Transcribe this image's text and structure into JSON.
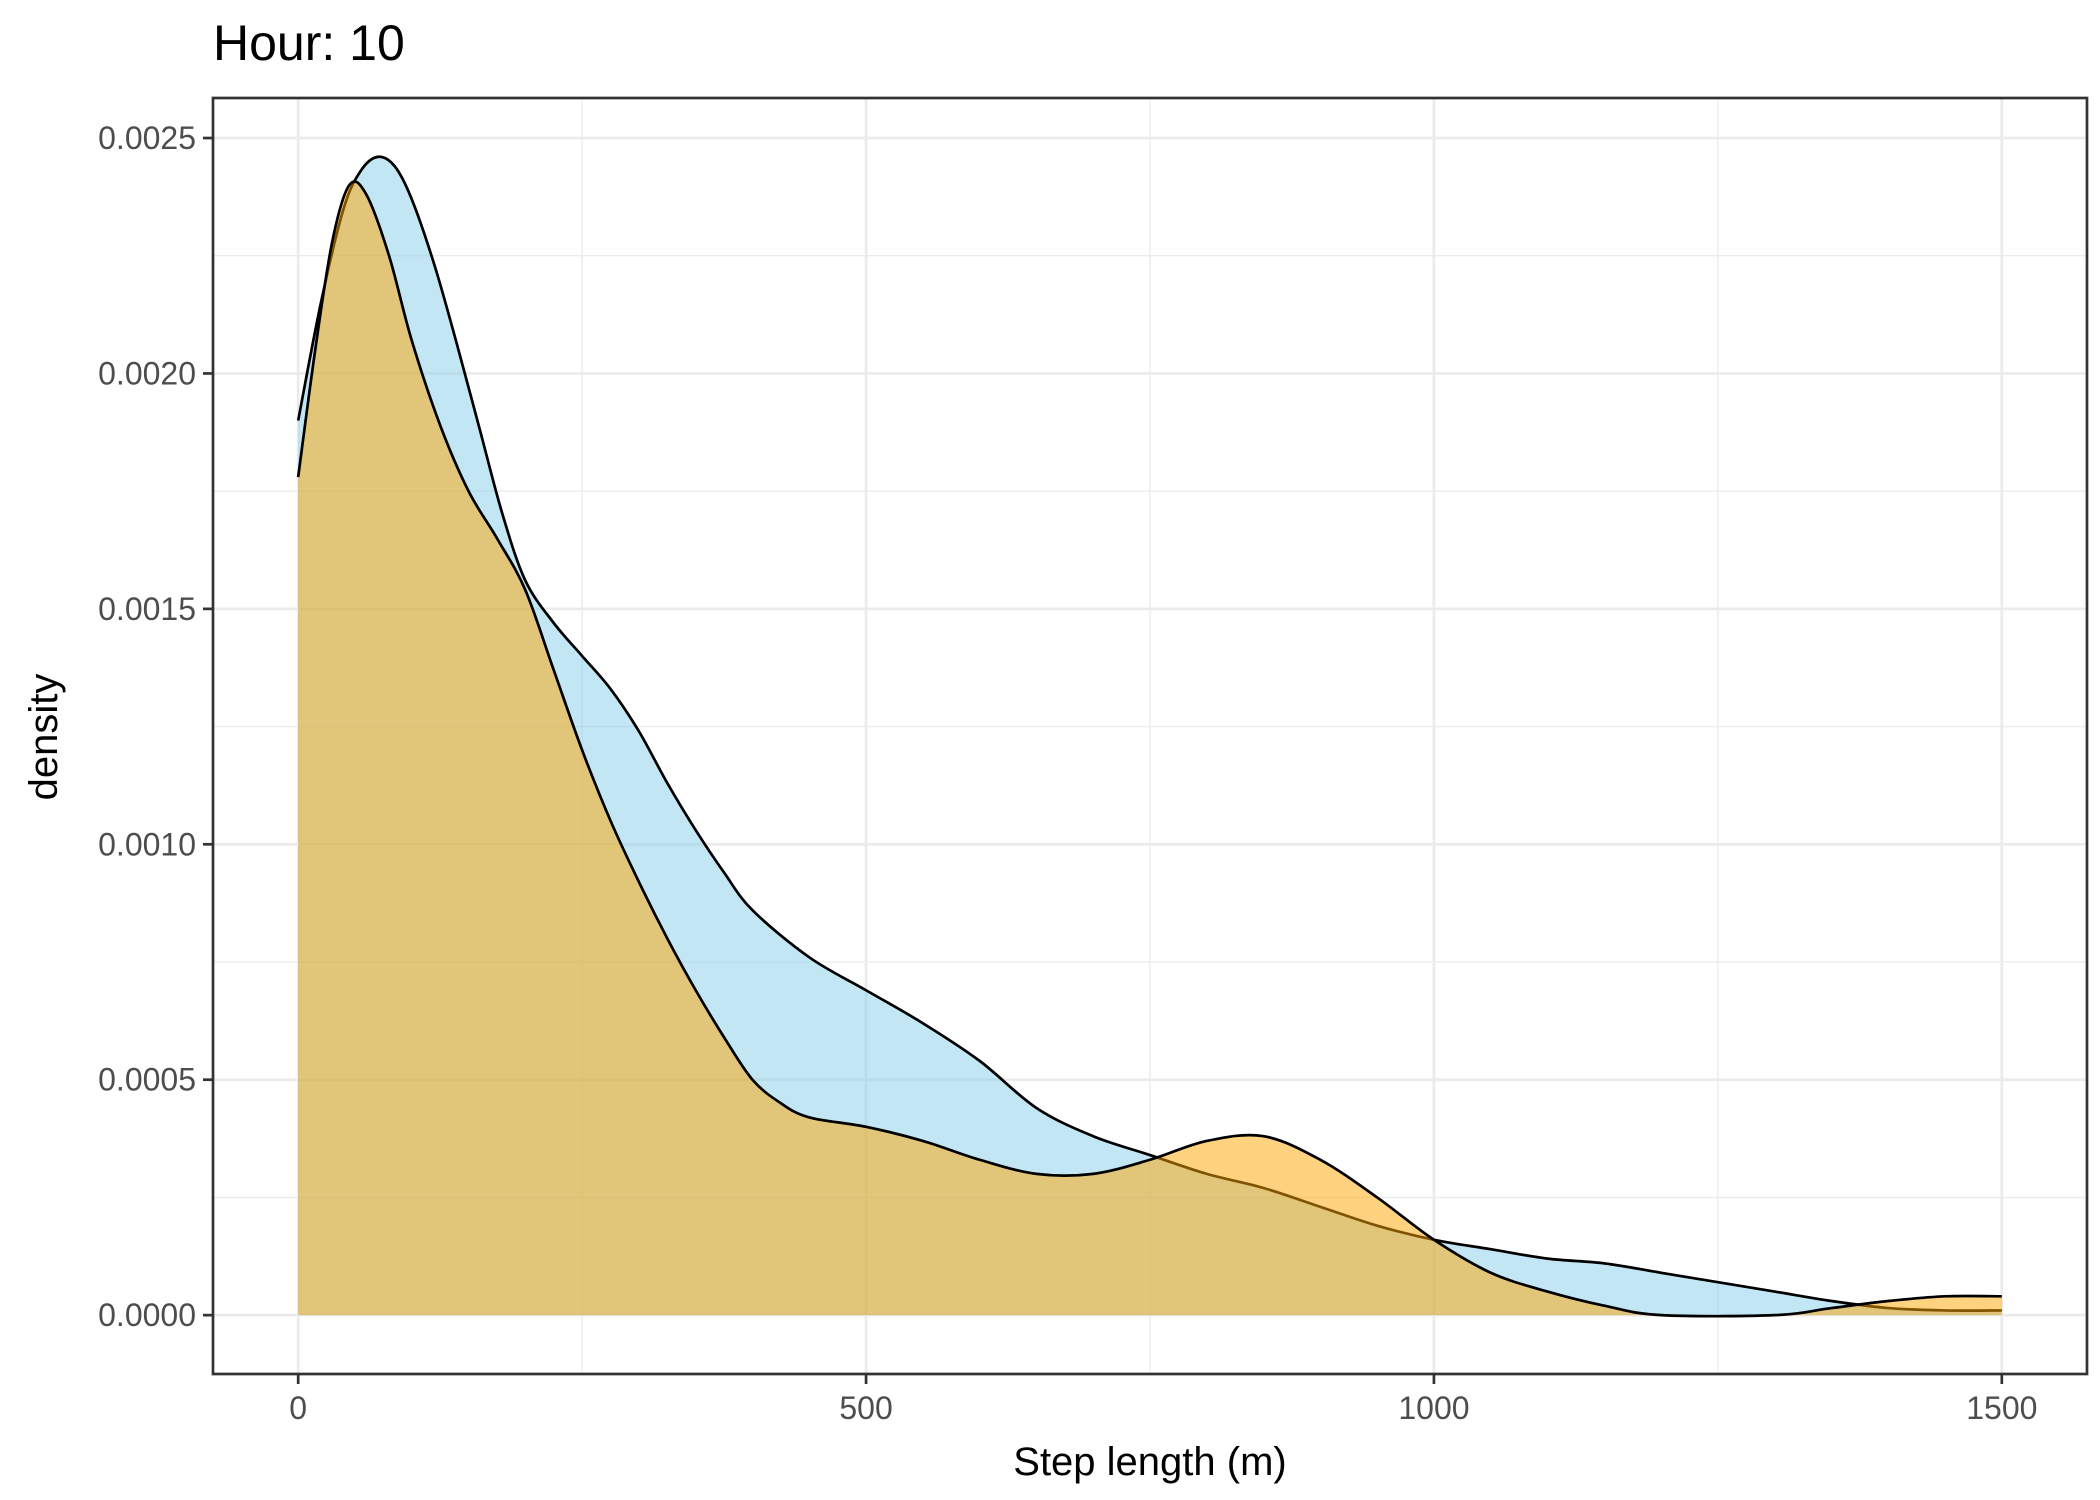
{
  "chart_data": {
    "type": "area",
    "title": "Hour: 10",
    "xlabel": "Step length (m)",
    "ylabel": "density",
    "xlim": [
      -75,
      1575
    ],
    "ylim": [
      -0.000125,
      0.002585
    ],
    "x_ticks": [
      0,
      500,
      1000,
      1500
    ],
    "x_tick_labels": [
      "0",
      "500",
      "1000",
      "1500"
    ],
    "y_ticks": [
      0,
      0.0005,
      0.001,
      0.0015,
      0.002,
      0.0025
    ],
    "y_tick_labels": [
      "0.0000",
      "0.0005",
      "0.0010",
      "0.0015",
      "0.0020",
      "0.0025"
    ],
    "grid": true,
    "legend": "none",
    "series": [
      {
        "color": "#87ceeb",
        "opacity": 0.5,
        "points": [
          [
            0,
            0.0019
          ],
          [
            20,
            0.00215
          ],
          [
            40,
            0.00235
          ],
          [
            55,
            0.00243
          ],
          [
            70,
            0.00246
          ],
          [
            85,
            0.00244
          ],
          [
            100,
            0.00237
          ],
          [
            120,
            0.00223
          ],
          [
            140,
            0.00206
          ],
          [
            160,
            0.00188
          ],
          [
            180,
            0.0017
          ],
          [
            200,
            0.00156
          ],
          [
            225,
            0.00147
          ],
          [
            250,
            0.0014
          ],
          [
            275,
            0.00133
          ],
          [
            300,
            0.00124
          ],
          [
            325,
            0.00113
          ],
          [
            350,
            0.00103
          ],
          [
            375,
            0.00094
          ],
          [
            400,
            0.00086
          ],
          [
            450,
            0.00076
          ],
          [
            500,
            0.00069
          ],
          [
            550,
            0.00062
          ],
          [
            600,
            0.00054
          ],
          [
            650,
            0.00044
          ],
          [
            700,
            0.00038
          ],
          [
            750,
            0.00034
          ],
          [
            800,
            0.0003
          ],
          [
            850,
            0.00027
          ],
          [
            900,
            0.00023
          ],
          [
            950,
            0.00019
          ],
          [
            1000,
            0.00016
          ],
          [
            1050,
            0.00014
          ],
          [
            1100,
            0.00012
          ],
          [
            1150,
            0.00011
          ],
          [
            1200,
            9e-05
          ],
          [
            1250,
            7e-05
          ],
          [
            1300,
            5e-05
          ],
          [
            1350,
            3e-05
          ],
          [
            1400,
            1.5e-05
          ],
          [
            1450,
            1e-05
          ],
          [
            1500,
            1e-05
          ]
        ]
      },
      {
        "color": "#ffa500",
        "opacity": 0.5,
        "points": [
          [
            0,
            0.00178
          ],
          [
            15,
            0.00205
          ],
          [
            30,
            0.00228
          ],
          [
            45,
            0.0024
          ],
          [
            60,
            0.00238
          ],
          [
            80,
            0.00225
          ],
          [
            100,
            0.00207
          ],
          [
            125,
            0.00189
          ],
          [
            150,
            0.00175
          ],
          [
            175,
            0.00165
          ],
          [
            200,
            0.00154
          ],
          [
            225,
            0.00137
          ],
          [
            250,
            0.0012
          ],
          [
            275,
            0.00105
          ],
          [
            300,
            0.00092
          ],
          [
            325,
            0.0008
          ],
          [
            350,
            0.00069
          ],
          [
            375,
            0.00059
          ],
          [
            400,
            0.0005
          ],
          [
            425,
            0.00045
          ],
          [
            450,
            0.00042
          ],
          [
            500,
            0.0004
          ],
          [
            550,
            0.00037
          ],
          [
            600,
            0.00033
          ],
          [
            650,
            0.0003
          ],
          [
            700,
            0.0003
          ],
          [
            750,
            0.00033
          ],
          [
            800,
            0.00037
          ],
          [
            850,
            0.00038
          ],
          [
            900,
            0.00033
          ],
          [
            950,
            0.00025
          ],
          [
            1000,
            0.00016
          ],
          [
            1050,
            9e-05
          ],
          [
            1100,
            5e-05
          ],
          [
            1150,
            2e-05
          ],
          [
            1200,
            0.0
          ],
          [
            1300,
            0.0
          ],
          [
            1350,
            1.5e-05
          ],
          [
            1400,
            3e-05
          ],
          [
            1450,
            4e-05
          ],
          [
            1500,
            4e-05
          ]
        ]
      }
    ]
  }
}
